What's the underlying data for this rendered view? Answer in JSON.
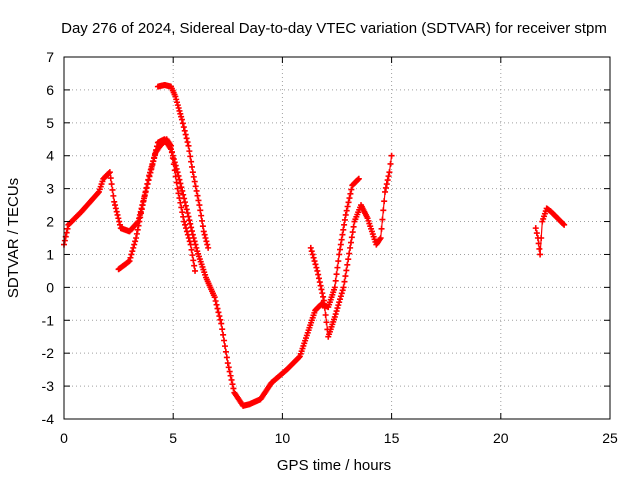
{
  "chart_data": {
    "type": "scatter",
    "title": "Day 276 of 2024, Sidereal Day-to-day VTEC variation (SDTVAR) for receiver stpm",
    "xlabel": "GPS time / hours",
    "ylabel": "SDTVAR / TECUs",
    "xlim": [
      0,
      25
    ],
    "ylim": [
      -4,
      7
    ],
    "xticks": [
      "0",
      "5",
      "10",
      "15",
      "20",
      "25"
    ],
    "yticks": [
      "-4",
      "-3",
      "-2",
      "-1",
      "0",
      "1",
      "2",
      "3",
      "4",
      "5",
      "6",
      "7"
    ],
    "grid": true,
    "marker": "plus",
    "color": "#ff0000",
    "series": [
      {
        "points": [
          [
            0.0,
            1.3
          ],
          [
            0.2,
            1.9
          ],
          [
            0.5,
            2.1
          ],
          [
            0.8,
            2.3
          ],
          [
            1.2,
            2.6
          ],
          [
            1.6,
            2.9
          ],
          [
            1.8,
            3.3
          ],
          [
            2.1,
            3.5
          ],
          [
            2.3,
            2.6
          ],
          [
            2.6,
            1.8
          ],
          [
            3.0,
            1.7
          ],
          [
            3.4,
            2.0
          ],
          [
            3.7,
            2.8
          ],
          [
            4.0,
            3.6
          ],
          [
            4.3,
            4.4
          ],
          [
            4.6,
            4.5
          ],
          [
            4.9,
            4.2
          ],
          [
            5.2,
            3.5
          ],
          [
            5.5,
            2.7
          ],
          [
            5.9,
            1.6
          ],
          [
            6.1,
            1.1
          ],
          [
            6.5,
            0.3
          ],
          [
            6.9,
            -0.3
          ],
          [
            7.2,
            -1.1
          ],
          [
            7.5,
            -2.3
          ],
          [
            7.8,
            -3.2
          ],
          [
            8.2,
            -3.6
          ],
          [
            8.5,
            -3.55
          ],
          [
            9.0,
            -3.4
          ],
          [
            9.5,
            -2.9
          ],
          [
            10.2,
            -2.5
          ],
          [
            10.8,
            -2.1
          ],
          [
            11.2,
            -1.3
          ],
          [
            11.5,
            -0.7
          ],
          [
            11.8,
            -0.5
          ],
          [
            12.1,
            -0.6
          ],
          [
            12.4,
            0.0
          ],
          [
            12.6,
            1.0
          ],
          [
            12.9,
            2.2
          ],
          [
            13.2,
            3.1
          ],
          [
            13.5,
            3.3
          ]
        ]
      },
      {
        "points": [
          [
            2.5,
            0.55
          ],
          [
            3.0,
            0.8
          ],
          [
            3.3,
            1.5
          ],
          [
            3.6,
            2.5
          ],
          [
            3.9,
            3.4
          ],
          [
            4.2,
            4.1
          ],
          [
            4.4,
            4.3
          ],
          [
            4.7,
            4.5
          ],
          [
            4.9,
            4.3
          ],
          [
            5.2,
            3.0
          ],
          [
            5.5,
            2.0
          ],
          [
            5.8,
            1.3
          ],
          [
            6.0,
            0.5
          ]
        ]
      },
      {
        "points": [
          [
            4.3,
            6.1
          ],
          [
            4.6,
            6.15
          ],
          [
            4.9,
            6.1
          ],
          [
            5.1,
            5.8
          ],
          [
            5.4,
            5.1
          ],
          [
            5.7,
            4.3
          ],
          [
            5.9,
            3.5
          ],
          [
            6.2,
            2.5
          ],
          [
            6.4,
            1.7
          ],
          [
            6.6,
            1.2
          ]
        ]
      },
      {
        "points": [
          [
            11.3,
            1.2
          ],
          [
            11.6,
            0.5
          ],
          [
            11.9,
            -0.4
          ],
          [
            12.1,
            -1.5
          ],
          [
            12.4,
            -0.9
          ],
          [
            12.8,
            0.0
          ],
          [
            13.1,
            1.2
          ],
          [
            13.3,
            2.0
          ],
          [
            13.6,
            2.5
          ],
          [
            13.9,
            2.1
          ],
          [
            14.3,
            1.3
          ],
          [
            14.5,
            1.5
          ],
          [
            14.7,
            2.9
          ],
          [
            14.9,
            3.5
          ],
          [
            15.0,
            4.0
          ]
        ]
      },
      {
        "points": [
          [
            21.6,
            1.8
          ],
          [
            21.7,
            1.5
          ],
          [
            21.8,
            1.0
          ],
          [
            21.9,
            2.0
          ],
          [
            22.1,
            2.4
          ],
          [
            22.3,
            2.3
          ],
          [
            22.6,
            2.1
          ],
          [
            22.9,
            1.9
          ]
        ]
      }
    ]
  }
}
